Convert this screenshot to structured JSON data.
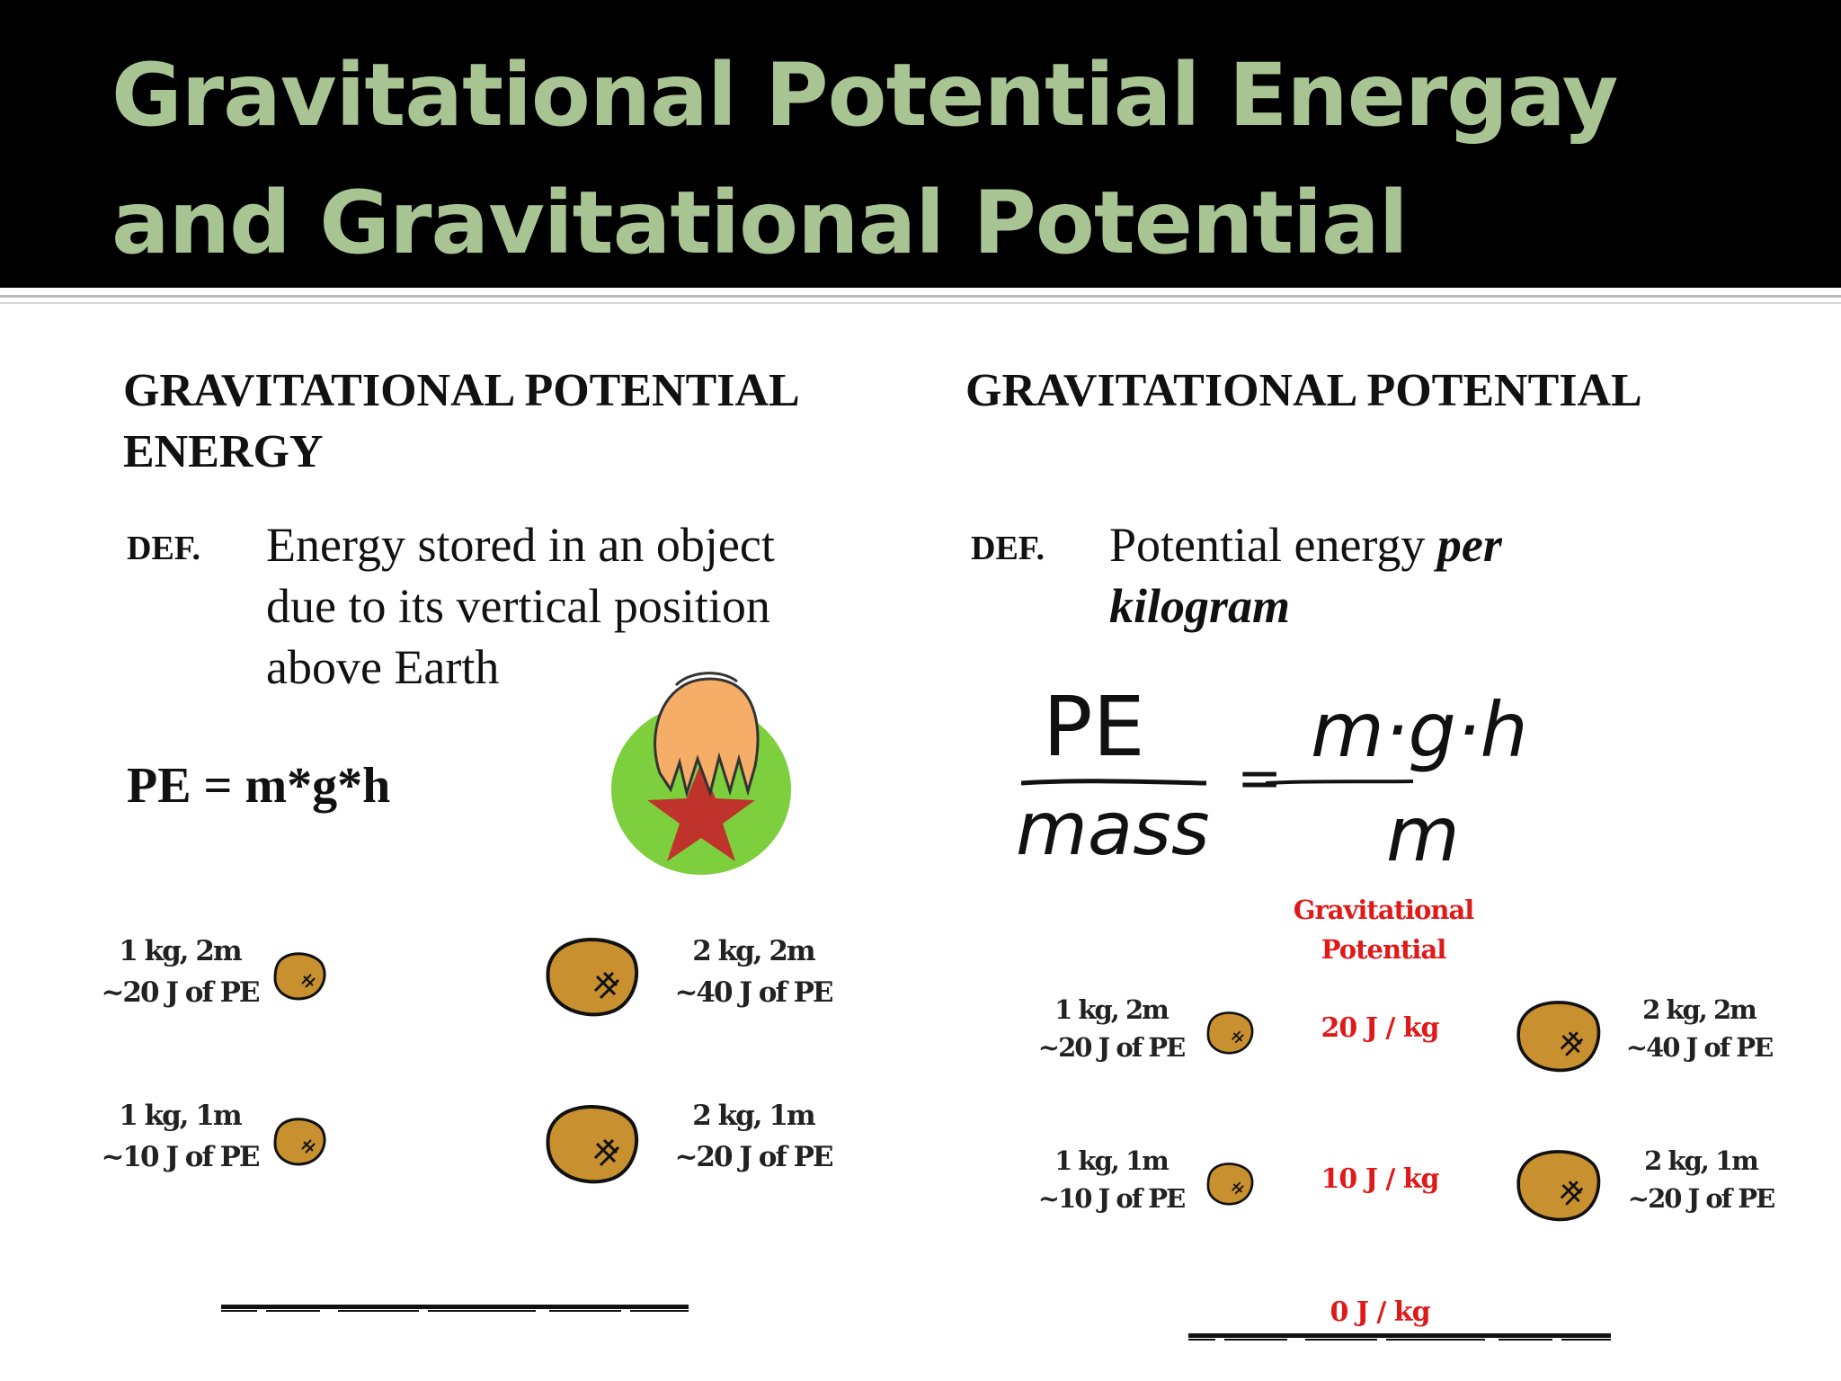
{
  "title": {
    "line1": "Gravitational Potential Energay",
    "line2": "and Gravitational Potential"
  },
  "left": {
    "heading_line1": "GRAVITATIONAL POTENTIAL",
    "heading_line2": "ENERGY",
    "def_label": "DEF.",
    "def_line1": "Energy stored in an object",
    "def_line2": "due to its vertical position",
    "def_line3": "above Earth",
    "formula": "PE = m*g*h",
    "rocks": [
      {
        "mass_height": "1 kg, 2m",
        "energy": "~20 J of PE"
      },
      {
        "mass_height": "2 kg, 2m",
        "energy": "~40 J of PE"
      },
      {
        "mass_height": "1 kg, 1m",
        "energy": "~10 J of PE"
      },
      {
        "mass_height": "2 kg, 1m",
        "energy": "~20 J of PE"
      }
    ]
  },
  "right": {
    "heading": "GRAVITATIONAL POTENTIAL",
    "def_label": "DEF.",
    "def_plain": "Potential energy ",
    "def_emph1": "per",
    "def_emph2": "kilogram",
    "ratio": {
      "numerator_left": "PE",
      "denominator_left": "mass",
      "numerator_right": "m·g·h",
      "denominator_right": "m"
    },
    "potential_label_line1": "Gravitational",
    "potential_label_line2": "Potential",
    "potentials": [
      "20 J / kg",
      "10 J / kg",
      "0 J / kg"
    ],
    "rocks": [
      {
        "mass_height": "1 kg, 2m",
        "energy": "~20 J of PE"
      },
      {
        "mass_height": "2 kg, 2m",
        "energy": "~40 J of PE"
      },
      {
        "mass_height": "1 kg, 1m",
        "energy": "~10 J of PE"
      },
      {
        "mass_height": "2 kg, 1m",
        "energy": "~20 J of PE"
      }
    ]
  },
  "colors": {
    "title_bg": "#000000",
    "title_text": "#a9c493",
    "potential_red": "#e01919",
    "rock_fill": "#c8902e"
  },
  "icons": {
    "rock": "rock-icon",
    "hand": "hand-holding-ball-icon",
    "ground": "ground-line"
  }
}
